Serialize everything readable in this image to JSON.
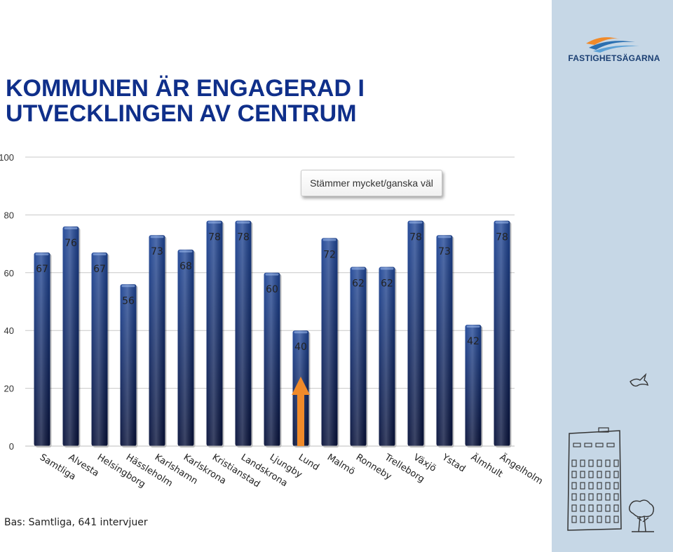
{
  "title_lines": [
    "KOMMUNEN ÄR ENGAGERAD I",
    "UTVECKLINGEN AV CENTRUM"
  ],
  "logo_text": "FASTIGHETSÄGARNA",
  "footnote": "Bas: Samtliga, 641 intervjuer",
  "colors": {
    "title": "#0f2f8a",
    "bar_top": "#1e4596",
    "bar_bottom": "#050f38",
    "arrow": "#f08a2a",
    "sidebar": "#c6d7e6"
  },
  "chart_data": {
    "type": "bar",
    "title": "",
    "xlabel": "",
    "ylabel": "",
    "ylim": [
      0,
      100
    ],
    "yticks": [
      0,
      20,
      40,
      60,
      80,
      100
    ],
    "grid": true,
    "legend": {
      "placement": "top-right",
      "entries": [
        "Stämmer mycket/ganska väl"
      ]
    },
    "categories": [
      "Samtliga",
      "Alvesta",
      "Helsingborg",
      "Hässleholm",
      "Karlshamn",
      "Karlskrona",
      "Kristianstad",
      "Landskrona",
      "Ljungby",
      "Lund",
      "Malmö",
      "Ronneby",
      "Trelleborg",
      "Växjö",
      "Ystad",
      "Älmhult",
      "Ängelholm"
    ],
    "series": [
      {
        "name": "Stämmer mycket/ganska väl",
        "values": [
          67,
          76,
          67,
          56,
          73,
          68,
          78,
          78,
          60,
          40,
          72,
          62,
          62,
          78,
          73,
          42,
          78
        ]
      }
    ],
    "annotation": {
      "type": "arrow",
      "category": "Lund"
    }
  }
}
